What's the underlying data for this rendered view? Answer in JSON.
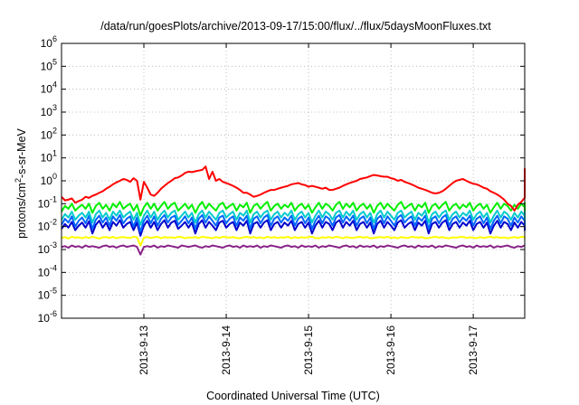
{
  "chart_data": {
    "type": "line",
    "title": "/data/run/goesPlots/archive/2013-09-17/15:00/flux/../flux/5daysMoonFluxes.txt",
    "xlabel": "Coordinated Universal Time (UTC)",
    "ylabel": {
      "before": "protons/cm",
      "sup": "2",
      "after": "-s-sr-MeV"
    },
    "y_scale": "log",
    "ylim": [
      1e-06,
      1000000.0
    ],
    "y_ticks": [
      {
        "value": 1e-06,
        "base": "10",
        "exp": "-6"
      },
      {
        "value": 1e-05,
        "base": "10",
        "exp": "-5"
      },
      {
        "value": 0.0001,
        "base": "10",
        "exp": "-4"
      },
      {
        "value": 0.001,
        "base": "10",
        "exp": "-3"
      },
      {
        "value": 0.01,
        "base": "10",
        "exp": "-2"
      },
      {
        "value": 0.1,
        "base": "10",
        "exp": "-1"
      },
      {
        "value": 1,
        "base": "10",
        "exp": "0"
      },
      {
        "value": 10,
        "base": "10",
        "exp": "1"
      },
      {
        "value": 100,
        "base": "10",
        "exp": "2"
      },
      {
        "value": 1000,
        "base": "10",
        "exp": "3"
      },
      {
        "value": 10000,
        "base": "10",
        "exp": "4"
      },
      {
        "value": 100000,
        "base": "10",
        "exp": "5"
      },
      {
        "value": 1000000,
        "base": "10",
        "exp": "6"
      }
    ],
    "xlim": [
      "2013-09-12 00:00",
      "2013-09-17 15:00"
    ],
    "x_ticks": [
      {
        "date": "2013-09-13 00:00",
        "label": "2013-9-13"
      },
      {
        "date": "2013-09-14 00:00",
        "label": "2013-9-14"
      },
      {
        "date": "2013-09-15 00:00",
        "label": "2013-9-15"
      },
      {
        "date": "2013-09-16 00:00",
        "label": "2013-9-16"
      },
      {
        "date": "2013-09-17 00:00",
        "label": "2013-9-17"
      }
    ],
    "grid": true,
    "sample_step_hours": 1,
    "series": [
      {
        "color": "#ff0000",
        "values": [
          0.2,
          0.14,
          0.15,
          0.17,
          0.11,
          0.13,
          0.15,
          0.2,
          0.18,
          0.22,
          0.25,
          0.3,
          0.35,
          0.45,
          0.55,
          0.7,
          0.85,
          1.0,
          1.2,
          1.1,
          0.9,
          1.3,
          1.0,
          0.15,
          0.9,
          0.5,
          0.25,
          0.22,
          0.3,
          0.45,
          0.6,
          0.8,
          1.0,
          1.3,
          1.4,
          1.7,
          2.2,
          2.5,
          2.4,
          2.6,
          2.8,
          3.0,
          4.2,
          1.2,
          2.5,
          1.0,
          1.2,
          0.9,
          0.8,
          0.7,
          0.6,
          0.5,
          0.4,
          0.3,
          0.3,
          0.25,
          0.2,
          0.22,
          0.25,
          0.3,
          0.35,
          0.4,
          0.4,
          0.45,
          0.5,
          0.55,
          0.6,
          0.7,
          0.75,
          0.8,
          0.7,
          0.65,
          0.55,
          0.6,
          0.55,
          0.5,
          0.45,
          0.5,
          0.4,
          0.4,
          0.45,
          0.5,
          0.6,
          0.7,
          0.8,
          0.9,
          1.0,
          1.2,
          1.3,
          1.4,
          1.6,
          1.8,
          1.7,
          1.6,
          1.5,
          1.5,
          1.3,
          1.2,
          1.0,
          1.1,
          0.9,
          0.8,
          0.7,
          0.6,
          0.5,
          0.45,
          0.4,
          0.35,
          0.3,
          0.28,
          0.3,
          0.35,
          0.45,
          0.6,
          0.8,
          1.0,
          1.1,
          1.2,
          1.0,
          0.85,
          0.75,
          0.7,
          0.6,
          0.5,
          0.45,
          0.35,
          0.3,
          0.25,
          0.2,
          0.15,
          0.1,
          0.08,
          0.05,
          0.09,
          0.12,
          0.18,
          0.22,
          0.4,
          0.8,
          1.2,
          1.5,
          2.0,
          3.0,
          3.5
        ]
      },
      {
        "color": "#00ee00",
        "values": [
          0.045,
          0.08,
          0.06,
          0.1,
          0.05,
          0.07,
          0.09,
          0.06,
          0.1,
          0.04,
          0.08,
          0.11,
          0.06,
          0.09,
          0.05,
          0.1,
          0.07,
          0.12,
          0.06,
          0.08,
          0.1,
          0.05,
          0.09,
          0.03,
          0.07,
          0.11,
          0.06,
          0.1,
          0.05,
          0.08,
          0.12,
          0.06,
          0.09,
          0.11,
          0.05,
          0.07,
          0.1,
          0.06,
          0.09,
          0.04,
          0.08,
          0.12,
          0.06,
          0.1,
          0.07,
          0.05,
          0.09,
          0.11,
          0.06,
          0.08,
          0.1,
          0.05,
          0.09,
          0.07,
          0.11,
          0.04,
          0.08,
          0.1,
          0.06,
          0.09,
          0.12,
          0.05,
          0.08,
          0.1,
          0.06,
          0.09,
          0.07,
          0.11,
          0.05,
          0.08,
          0.1,
          0.06,
          0.09,
          0.04,
          0.07,
          0.11,
          0.06,
          0.1,
          0.08,
          0.05,
          0.09,
          0.12,
          0.06,
          0.1,
          0.07,
          0.11,
          0.05,
          0.08,
          0.1,
          0.06,
          0.09,
          0.04,
          0.08,
          0.11,
          0.06,
          0.1,
          0.07,
          0.05,
          0.09,
          0.12,
          0.06,
          0.08,
          0.1,
          0.05,
          0.09,
          0.07,
          0.11,
          0.04,
          0.08,
          0.1,
          0.06,
          0.09,
          0.12,
          0.05,
          0.08,
          0.1,
          0.06,
          0.09,
          0.07,
          0.11,
          0.05,
          0.08,
          0.1,
          0.06,
          0.09,
          0.04,
          0.07,
          0.11,
          0.06,
          0.1,
          0.08,
          0.05,
          0.09,
          0.06,
          0.1,
          0.07,
          0.11,
          0.05,
          0.08,
          0.1
        ]
      },
      {
        "color": "#00cccc",
        "values": [
          0.02,
          0.035,
          0.025,
          0.045,
          0.02,
          0.03,
          0.04,
          0.025,
          0.045,
          0.015,
          0.035,
          0.05,
          0.025,
          0.04,
          0.02,
          0.045,
          0.03,
          0.05,
          0.025,
          0.035,
          0.045,
          0.02,
          0.04,
          0.012,
          0.03,
          0.05,
          0.025,
          0.045,
          0.02,
          0.035,
          0.05,
          0.025,
          0.04,
          0.05,
          0.02,
          0.03,
          0.045,
          0.025,
          0.04,
          0.015,
          0.035,
          0.05,
          0.025,
          0.045,
          0.03,
          0.02,
          0.04,
          0.05,
          0.025,
          0.035,
          0.045,
          0.02,
          0.04,
          0.03,
          0.05,
          0.015,
          0.035,
          0.045,
          0.025,
          0.04,
          0.05,
          0.02,
          0.035,
          0.045,
          0.025,
          0.04,
          0.03,
          0.05,
          0.02,
          0.035,
          0.045,
          0.025,
          0.04,
          0.015,
          0.03,
          0.05,
          0.025,
          0.045,
          0.035,
          0.02,
          0.04,
          0.05,
          0.025,
          0.045,
          0.03,
          0.05,
          0.02,
          0.035,
          0.045,
          0.025,
          0.04,
          0.015,
          0.035,
          0.05,
          0.025,
          0.045,
          0.03,
          0.02,
          0.04,
          0.05,
          0.025,
          0.035,
          0.045,
          0.02,
          0.04,
          0.03,
          0.05,
          0.015,
          0.035,
          0.045,
          0.025,
          0.04,
          0.05,
          0.02,
          0.035,
          0.045,
          0.025,
          0.04,
          0.03,
          0.05,
          0.02,
          0.035,
          0.045,
          0.025,
          0.04,
          0.015,
          0.03,
          0.05,
          0.025,
          0.045,
          0.035,
          0.02,
          0.04,
          0.025,
          0.045,
          0.03,
          0.05,
          0.02,
          0.035,
          0.045
        ]
      },
      {
        "color": "#0066ff",
        "values": [
          0.012,
          0.022,
          0.015,
          0.028,
          0.01,
          0.018,
          0.025,
          0.014,
          0.03,
          0.008,
          0.02,
          0.03,
          0.015,
          0.025,
          0.011,
          0.028,
          0.018,
          0.032,
          0.014,
          0.022,
          0.028,
          0.01,
          0.025,
          0.006,
          0.018,
          0.03,
          0.014,
          0.028,
          0.011,
          0.022,
          0.032,
          0.015,
          0.025,
          0.03,
          0.012,
          0.018,
          0.028,
          0.014,
          0.025,
          0.008,
          0.022,
          0.032,
          0.015,
          0.028,
          0.018,
          0.011,
          0.025,
          0.03,
          0.014,
          0.022,
          0.028,
          0.011,
          0.025,
          0.018,
          0.03,
          0.008,
          0.022,
          0.028,
          0.014,
          0.025,
          0.032,
          0.011,
          0.022,
          0.028,
          0.015,
          0.025,
          0.018,
          0.03,
          0.011,
          0.022,
          0.028,
          0.014,
          0.025,
          0.008,
          0.018,
          0.03,
          0.014,
          0.028,
          0.022,
          0.011,
          0.025,
          0.032,
          0.015,
          0.028,
          0.018,
          0.03,
          0.011,
          0.022,
          0.028,
          0.014,
          0.025,
          0.008,
          0.022,
          0.03,
          0.014,
          0.028,
          0.018,
          0.011,
          0.025,
          0.032,
          0.015,
          0.022,
          0.028,
          0.011,
          0.025,
          0.018,
          0.03,
          0.008,
          0.022,
          0.028,
          0.014,
          0.025,
          0.032,
          0.011,
          0.022,
          0.028,
          0.015,
          0.025,
          0.018,
          0.03,
          0.011,
          0.022,
          0.028,
          0.014,
          0.025,
          0.008,
          0.018,
          0.03,
          0.014,
          0.028,
          0.022,
          0.011,
          0.025,
          0.015,
          0.028,
          0.018,
          0.03,
          0.011,
          0.022,
          0.028
        ]
      },
      {
        "color": "#0000cc",
        "values": [
          0.008,
          0.013,
          0.009,
          0.016,
          0.007,
          0.011,
          0.015,
          0.009,
          0.017,
          0.005,
          0.012,
          0.018,
          0.009,
          0.015,
          0.007,
          0.016,
          0.011,
          0.019,
          0.009,
          0.013,
          0.016,
          0.007,
          0.015,
          0.004,
          0.011,
          0.018,
          0.009,
          0.016,
          0.007,
          0.013,
          0.019,
          0.009,
          0.015,
          0.018,
          0.008,
          0.011,
          0.016,
          0.009,
          0.015,
          0.005,
          0.013,
          0.019,
          0.009,
          0.016,
          0.011,
          0.007,
          0.015,
          0.018,
          0.009,
          0.013,
          0.016,
          0.007,
          0.015,
          0.011,
          0.018,
          0.005,
          0.013,
          0.016,
          0.009,
          0.015,
          0.019,
          0.007,
          0.013,
          0.016,
          0.009,
          0.015,
          0.011,
          0.018,
          0.007,
          0.013,
          0.016,
          0.009,
          0.015,
          0.005,
          0.011,
          0.018,
          0.009,
          0.016,
          0.013,
          0.007,
          0.015,
          0.019,
          0.009,
          0.016,
          0.011,
          0.018,
          0.007,
          0.013,
          0.016,
          0.009,
          0.015,
          0.005,
          0.013,
          0.018,
          0.009,
          0.016,
          0.011,
          0.007,
          0.015,
          0.019,
          0.009,
          0.013,
          0.016,
          0.007,
          0.015,
          0.011,
          0.018,
          0.005,
          0.013,
          0.016,
          0.009,
          0.015,
          0.019,
          0.007,
          0.013,
          0.016,
          0.009,
          0.015,
          0.011,
          0.018,
          0.007,
          0.013,
          0.016,
          0.009,
          0.015,
          0.005,
          0.011,
          0.018,
          0.009,
          0.016,
          0.013,
          0.007,
          0.015,
          0.009,
          0.016,
          0.011,
          0.018,
          0.007,
          0.013,
          0.016
        ]
      },
      {
        "color": "#ffff00",
        "values": [
          0.0032,
          0.0035,
          0.003,
          0.0036,
          0.0033,
          0.0034,
          0.0031,
          0.0035,
          0.0032,
          0.0036,
          0.0033,
          0.003,
          0.0034,
          0.0035,
          0.0032,
          0.0036,
          0.0031,
          0.0034,
          0.0035,
          0.0033,
          0.0032,
          0.0036,
          0.0034,
          0.0015,
          0.0033,
          0.0035,
          0.0032,
          0.0034,
          0.0036,
          0.0031,
          0.0035,
          0.0033,
          0.0034,
          0.0032,
          0.0036,
          0.0035,
          0.0031,
          0.0034,
          0.0033,
          0.0035,
          0.0032,
          0.0036,
          0.0034,
          0.0033,
          0.0031,
          0.0035,
          0.0032,
          0.0036,
          0.0034,
          0.0033,
          0.0035,
          0.0032,
          0.0031,
          0.0034,
          0.0036,
          0.0033,
          0.0035,
          0.0032,
          0.0034,
          0.0031,
          0.0036,
          0.0033,
          0.0035,
          0.0032,
          0.0034,
          0.0033,
          0.0036,
          0.0031,
          0.0035,
          0.0032,
          0.0034,
          0.0033,
          0.0035,
          0.0036,
          0.0032,
          0.0031,
          0.0034,
          0.0033,
          0.0035,
          0.0032,
          0.0036,
          0.0034,
          0.0031,
          0.0035,
          0.0033,
          0.0032,
          0.0034,
          0.0036,
          0.0033,
          0.0035,
          0.0031,
          0.0032,
          0.0034,
          0.0035,
          0.0033,
          0.0036,
          0.0032,
          0.0034,
          0.0031,
          0.0035,
          0.0033,
          0.0032,
          0.0036,
          0.0034,
          0.0033,
          0.0035,
          0.0031,
          0.0032,
          0.0034,
          0.0036,
          0.0033,
          0.0035,
          0.0032,
          0.0031,
          0.0034,
          0.0033,
          0.0035,
          0.0036,
          0.0032,
          0.0034,
          0.0033,
          0.0031,
          0.0035,
          0.0032,
          0.0034,
          0.0036,
          0.0033,
          0.0035,
          0.0032,
          0.0034,
          0.0031,
          0.0033,
          0.0035,
          0.0032,
          0.0036,
          0.0034,
          0.0033,
          0.0035
        ]
      },
      {
        "color": "#882288",
        "values": [
          0.0013,
          0.0014,
          0.0012,
          0.0015,
          0.0013,
          0.0014,
          0.0012,
          0.0015,
          0.0013,
          0.0014,
          0.0013,
          0.0012,
          0.0014,
          0.0015,
          0.0013,
          0.0014,
          0.0012,
          0.0014,
          0.0015,
          0.0013,
          0.0014,
          0.0015,
          0.0013,
          0.0006,
          0.0013,
          0.0014,
          0.0013,
          0.0015,
          0.0012,
          0.0014,
          0.0013,
          0.0015,
          0.0014,
          0.0013,
          0.0012,
          0.0015,
          0.0014,
          0.0013,
          0.0014,
          0.0015,
          0.0013,
          0.0012,
          0.0014,
          0.0013,
          0.0015,
          0.0014,
          0.0013,
          0.0012,
          0.0014,
          0.0015,
          0.0013,
          0.0014,
          0.0012,
          0.0015,
          0.0013,
          0.0014,
          0.0013,
          0.0015,
          0.0012,
          0.0014,
          0.0013,
          0.0015,
          0.0014,
          0.0013,
          0.0012,
          0.0014,
          0.0015,
          0.0013,
          0.0014,
          0.0012,
          0.0015,
          0.0013,
          0.0014,
          0.0013,
          0.0015,
          0.0012,
          0.0014,
          0.0013,
          0.0015,
          0.0014,
          0.0013,
          0.0012,
          0.0014,
          0.0015,
          0.0013,
          0.0014,
          0.0012,
          0.0015,
          0.0013,
          0.0014,
          0.0013,
          0.0015,
          0.0012,
          0.0014,
          0.0013,
          0.0015,
          0.0014,
          0.0013,
          0.0012,
          0.0014,
          0.0015,
          0.0013,
          0.0014,
          0.0012,
          0.0015,
          0.0013,
          0.0014,
          0.0013,
          0.0015,
          0.0012,
          0.0014,
          0.0013,
          0.0015,
          0.0014,
          0.0013,
          0.0012,
          0.0014,
          0.0015,
          0.0013,
          0.0014,
          0.0012,
          0.0015,
          0.0013,
          0.0014,
          0.0013,
          0.0015,
          0.0012,
          0.0014,
          0.0013,
          0.0014,
          0.0015,
          0.0013,
          0.0012,
          0.0014,
          0.0013,
          0.0015
        ]
      }
    ]
  }
}
